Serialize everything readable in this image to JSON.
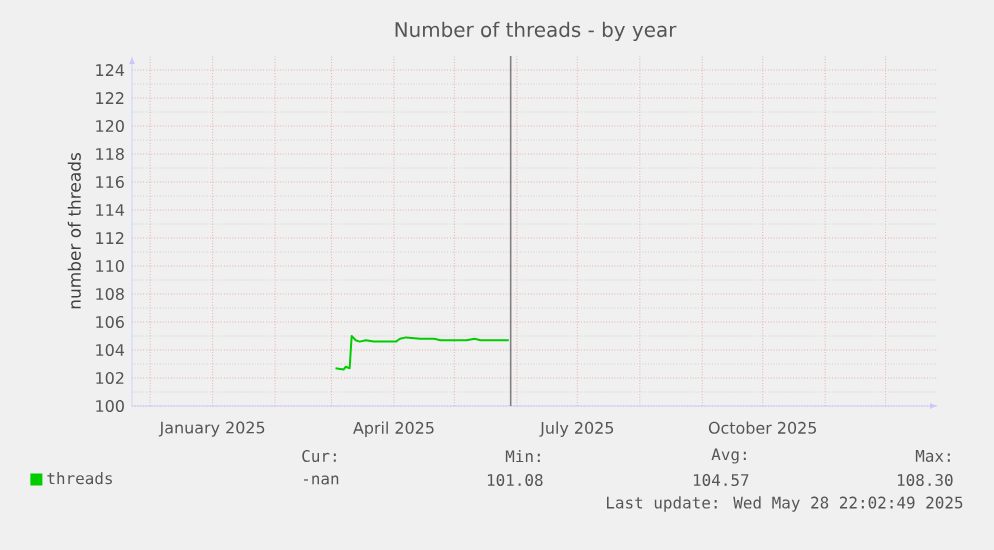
{
  "chart_data": {
    "type": "line",
    "title": "Number of threads - by year",
    "ylabel": "number of threads",
    "x": [
      "2025-03-03",
      "2025-03-07",
      "2025-03-08",
      "2025-03-10",
      "2025-03-11",
      "2025-03-13",
      "2025-03-15",
      "2025-03-18",
      "2025-03-22",
      "2025-04-02",
      "2025-04-04",
      "2025-04-07",
      "2025-04-14",
      "2025-04-21",
      "2025-04-24",
      "2025-05-07",
      "2025-05-11",
      "2025-05-14",
      "2025-05-28"
    ],
    "series": [
      {
        "name": "threads",
        "color": "#00cc00",
        "values": [
          102.7,
          102.6,
          102.8,
          102.7,
          105.0,
          104.7,
          104.6,
          104.7,
          104.6,
          104.6,
          104.8,
          104.9,
          104.8,
          104.8,
          104.7,
          104.7,
          104.8,
          104.7,
          104.7
        ]
      }
    ],
    "xlim": [
      "2024-11-22",
      "2025-12-27"
    ],
    "xticks": [
      {
        "value": "2024-12-01",
        "label": null
      },
      {
        "value": "2025-01-01",
        "label": "January 2025"
      },
      {
        "value": "2025-02-01",
        "label": null
      },
      {
        "value": "2025-03-01",
        "label": null
      },
      {
        "value": "2025-04-01",
        "label": "April 2025"
      },
      {
        "value": "2025-05-01",
        "label": null
      },
      {
        "value": "2025-06-01",
        "label": null
      },
      {
        "value": "2025-07-01",
        "label": "July 2025"
      },
      {
        "value": "2025-08-01",
        "label": null
      },
      {
        "value": "2025-09-01",
        "label": null
      },
      {
        "value": "2025-10-01",
        "label": "October 2025"
      },
      {
        "value": "2025-11-01",
        "label": null
      },
      {
        "value": "2025-12-01",
        "label": null
      }
    ],
    "ylim": [
      100,
      125
    ],
    "yticks": [
      100,
      102,
      104,
      106,
      108,
      110,
      112,
      114,
      116,
      118,
      120,
      122,
      124
    ],
    "ref_lines": [
      {
        "axis": "x",
        "value": "2025-05-28T22:02",
        "color": "#808080"
      }
    ],
    "grid": true,
    "legend": "bottom left",
    "marker": "none",
    "line_style": "solid",
    "annotations": [
      "Cur:",
      "Min:",
      "Avg:",
      "Max:",
      "-nan",
      "101.08",
      "104.57",
      "108.30",
      "Last update: Wed May 28 22:02:49 2025"
    ]
  }
}
